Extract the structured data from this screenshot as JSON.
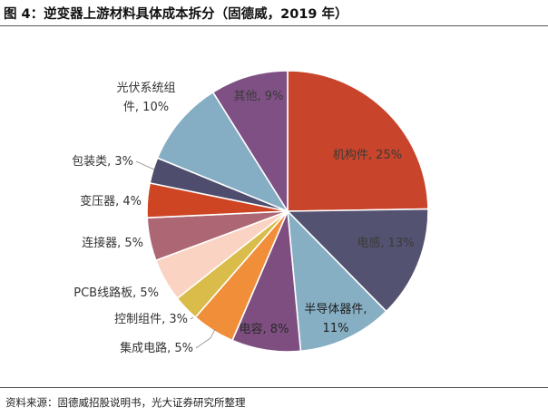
{
  "figure": {
    "title": "图 4：逆变器上游材料具体成本拆分（固德威，2019 年）",
    "source": "资料来源：固德威招股说明书，光大证券研究所整理"
  },
  "chart_data": {
    "type": "pie",
    "title": "图 4：逆变器上游材料具体成本拆分（固德威，2019 年）",
    "unit": "%",
    "slices": [
      {
        "name": "机构件",
        "value": 25,
        "label": "机构件, 25%",
        "color": "#C8442A"
      },
      {
        "name": "电感",
        "value": 13,
        "label": "电感, 13%",
        "color": "#545271"
      },
      {
        "name": "半导体器件",
        "value": 11,
        "label": "半导体器件, 11%",
        "color": "#87AFC4"
      },
      {
        "name": "电容",
        "value": 8,
        "label": "电容, 8%",
        "color": "#7D4E7F"
      },
      {
        "name": "集成电路",
        "value": 5,
        "label": "集成电路, 5%",
        "color": "#F08E3A"
      },
      {
        "name": "控制组件",
        "value": 3,
        "label": "控制组件, 3%",
        "color": "#D9BC4A"
      },
      {
        "name": "PCB线路板",
        "value": 5,
        "label": "PCB线路板, 5%",
        "color": "#FBD3C2"
      },
      {
        "name": "连接器",
        "value": 5,
        "label": "连接器, 5%",
        "color": "#AD6673"
      },
      {
        "name": "变压器",
        "value": 4,
        "label": "变压器, 4%",
        "color": "#CE4524"
      },
      {
        "name": "包装类",
        "value": 3,
        "label": "包装类, 3%",
        "color": "#4E4D6D"
      },
      {
        "name": "光伏系统组件",
        "value": 10,
        "label": "光伏系统组件, 10%",
        "color": "#85AEC4"
      },
      {
        "name": "其他",
        "value": 9,
        "label": "其他, 9%",
        "color": "#7E5083"
      }
    ]
  }
}
